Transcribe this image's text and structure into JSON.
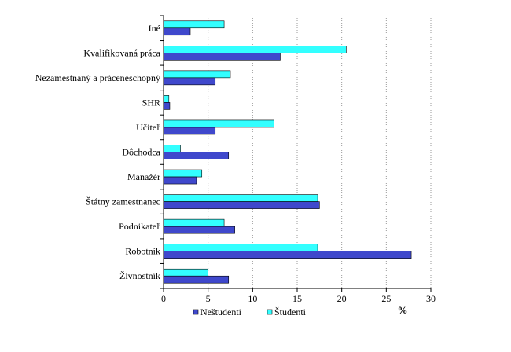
{
  "chart_data": {
    "type": "bar",
    "orientation": "horizontal",
    "categories": [
      "Živnostník",
      "Robotník",
      "Podnikateľ",
      "Štátny zamestnanec",
      "Manažér",
      "Dôchodca",
      "Učiteľ",
      "SHR",
      "Nezamestnaný a práceneschopný",
      "Kvalifikovaná práca",
      "Iné"
    ],
    "series": [
      {
        "name": "Neštudenti",
        "color": "#3f48cc",
        "values": [
          7.3,
          27.8,
          8.0,
          17.5,
          3.7,
          7.3,
          5.8,
          0.7,
          5.8,
          13.1,
          3.0
        ]
      },
      {
        "name": "Študenti",
        "color": "#33ffff",
        "values": [
          5.0,
          17.3,
          6.8,
          17.3,
          4.3,
          1.9,
          12.4,
          0.6,
          7.5,
          20.5,
          6.8
        ]
      }
    ],
    "xlabel": "%",
    "ylabel": "",
    "xlim": [
      0,
      30
    ],
    "xticks": [
      "0",
      "5",
      "10",
      "15",
      "20",
      "25",
      "30"
    ],
    "grid": "vertical dotted",
    "legend": "bottom"
  }
}
